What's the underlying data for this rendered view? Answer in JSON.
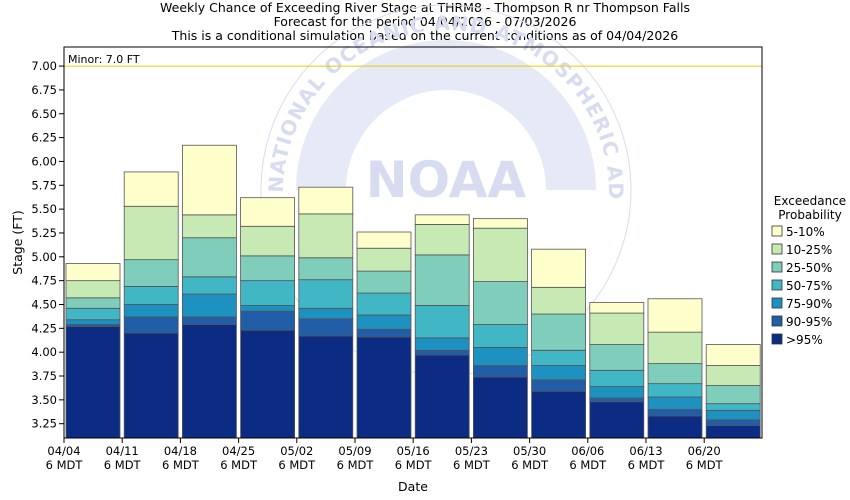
{
  "chart_data": {
    "type": "bar",
    "stacked": true,
    "title": "Weekly Chance of Exceeding River Stage at THRM8 - Thompson R nr Thompson Falls",
    "subtitle_1": "Forecast for the period 04/04/2026 - 07/03/2026",
    "subtitle_2": "This is a conditional simulation based on the current conditions as of 04/04/2026",
    "xlabel": "Date",
    "ylabel": "Stage (FT)",
    "ylim": [
      3.1,
      7.2
    ],
    "yticks": [
      "3.25",
      "3.50",
      "3.75",
      "4.00",
      "4.25",
      "4.50",
      "4.75",
      "5.00",
      "5.25",
      "5.50",
      "5.75",
      "6.00",
      "6.25",
      "6.50",
      "6.75",
      "7.00"
    ],
    "xticks": [
      {
        "date": "04/04",
        "tz": "6 MDT"
      },
      {
        "date": "04/11",
        "tz": "6 MDT"
      },
      {
        "date": "04/18",
        "tz": "6 MDT"
      },
      {
        "date": "04/25",
        "tz": "6 MDT"
      },
      {
        "date": "05/02",
        "tz": "6 MDT"
      },
      {
        "date": "05/09",
        "tz": "6 MDT"
      },
      {
        "date": "05/16",
        "tz": "6 MDT"
      },
      {
        "date": "05/23",
        "tz": "6 MDT"
      },
      {
        "date": "05/30",
        "tz": "6 MDT"
      },
      {
        "date": "06/06",
        "tz": "6 MDT"
      },
      {
        "date": "06/13",
        "tz": "6 MDT"
      },
      {
        "date": "06/20",
        "tz": "6 MDT"
      }
    ],
    "flood_stage": {
      "label": "Minor: 7.0 FT",
      "value": 7.0,
      "color": "#e0d000"
    },
    "legend_title": [
      "Exceedance",
      "Probability"
    ],
    "legend_placement": "right",
    "band_names": [
      "5-10%",
      "10-25%",
      "25-50%",
      "50-75%",
      "75-90%",
      "90-95%",
      ">95%"
    ],
    "band_colors": [
      "#ffffcc",
      "#c7e9b4",
      "#7fcdbb",
      "#41b6c4",
      "#1d91c0",
      "#225ea8",
      "#0c2c84"
    ],
    "weeks": [
      {
        "week": "04/04",
        "bounds": [
          4.27,
          4.29,
          4.34,
          4.46,
          4.57,
          4.75,
          4.93
        ]
      },
      {
        "week": "04/11",
        "bounds": [
          4.2,
          4.37,
          4.5,
          4.69,
          4.97,
          5.53,
          5.89
        ]
      },
      {
        "week": "04/18",
        "bounds": [
          4.29,
          4.37,
          4.61,
          4.79,
          5.2,
          5.44,
          6.17
        ]
      },
      {
        "week": "04/25",
        "bounds": [
          4.23,
          4.43,
          4.49,
          4.75,
          5.01,
          5.32,
          5.62
        ]
      },
      {
        "week": "05/02",
        "bounds": [
          4.17,
          4.35,
          4.46,
          4.76,
          4.99,
          5.45,
          5.73
        ]
      },
      {
        "week": "05/09",
        "bounds": [
          4.16,
          4.24,
          4.39,
          4.62,
          4.85,
          5.09,
          5.26
        ]
      },
      {
        "week": "05/16",
        "bounds": [
          3.97,
          4.02,
          4.15,
          4.49,
          5.02,
          5.34,
          5.44
        ]
      },
      {
        "week": "05/23",
        "bounds": [
          3.74,
          3.86,
          4.05,
          4.29,
          4.74,
          5.3,
          5.4
        ]
      },
      {
        "week": "05/30",
        "bounds": [
          3.59,
          3.71,
          3.86,
          4.02,
          4.4,
          4.68,
          5.08
        ]
      },
      {
        "week": "06/06",
        "bounds": [
          3.48,
          3.52,
          3.64,
          3.81,
          4.08,
          4.41,
          4.52
        ]
      },
      {
        "week": "06/13",
        "bounds": [
          3.33,
          3.4,
          3.53,
          3.67,
          3.88,
          4.21,
          4.56
        ]
      },
      {
        "week": "06/20",
        "bounds": [
          3.23,
          3.29,
          3.39,
          3.46,
          3.65,
          3.86,
          4.08
        ]
      }
    ],
    "grid": false
  },
  "watermark": {
    "logo_text": "NOAA",
    "ring_text": "NATIONAL OCEANIC AND ATMOSPHERIC ADMINISTRATION",
    "colors": {
      "ring": "#d8dcf0",
      "center": "#e6e9f6"
    }
  }
}
